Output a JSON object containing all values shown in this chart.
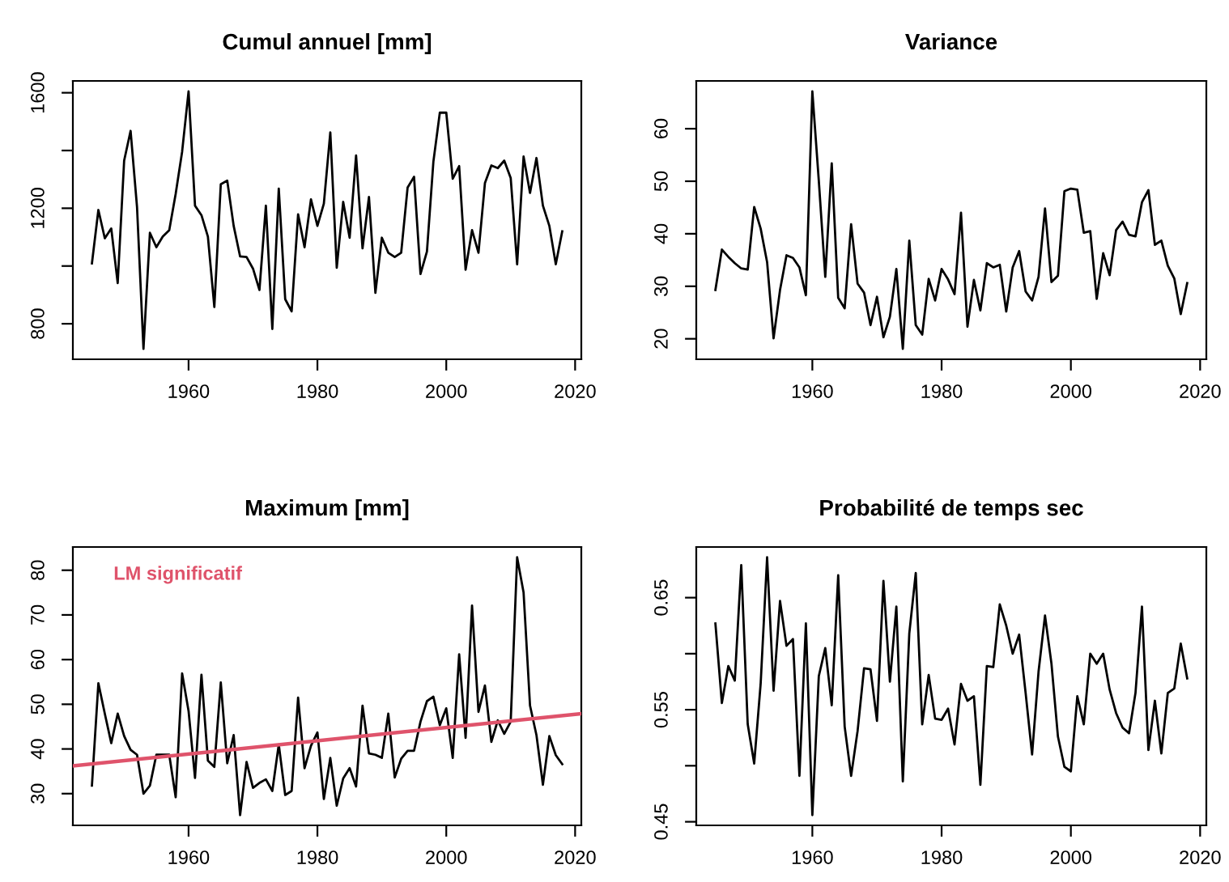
{
  "chart_data": [
    {
      "type": "line",
      "title": "Cumul annuel [mm]",
      "x": [
        1945,
        1946,
        1947,
        1948,
        1949,
        1950,
        1951,
        1952,
        1953,
        1954,
        1955,
        1956,
        1957,
        1958,
        1959,
        1960,
        1961,
        1962,
        1963,
        1964,
        1965,
        1966,
        1967,
        1968,
        1969,
        1970,
        1971,
        1972,
        1973,
        1974,
        1975,
        1976,
        1977,
        1978,
        1979,
        1980,
        1981,
        1982,
        1983,
        1984,
        1985,
        1986,
        1987,
        1988,
        1989,
        1990,
        1991,
        1992,
        1993,
        1994,
        1995,
        1996,
        1997,
        1998,
        1999,
        2000,
        2001,
        2002,
        2003,
        2004,
        2005,
        2006,
        2007,
        2008,
        2009,
        2010,
        2011,
        2012,
        2013,
        2014,
        2015,
        2016,
        2017,
        2018
      ],
      "series": [
        {
          "color": "#000000",
          "values": [
            1009,
            1194,
            1096,
            1130,
            941,
            1365,
            1468,
            1204,
            713,
            1115,
            1065,
            1102,
            1124,
            1250,
            1396,
            1605,
            1209,
            1176,
            1102,
            858,
            1283,
            1296,
            1139,
            1033,
            1031,
            991,
            917,
            1209,
            782,
            1268,
            885,
            843,
            1179,
            1065,
            1231,
            1139,
            1216,
            1463,
            994,
            1222,
            1098,
            1383,
            1061,
            1239,
            907,
            1098,
            1046,
            1031,
            1046,
            1272,
            1309,
            972,
            1050,
            1361,
            1531,
            1531,
            1302,
            1346,
            987,
            1124,
            1046,
            1287,
            1348,
            1339,
            1365,
            1305,
            1006,
            1379,
            1253,
            1374,
            1209,
            1139,
            1006,
            1120
          ]
        }
      ],
      "xlim": [
        1942.04,
        2020.96
      ],
      "xticks": [
        1960,
        1980,
        2000,
        2020
      ],
      "ylim": [
        677,
        1641
      ],
      "yticks": [
        800,
        {
          "value": 1000,
          "label": null
        },
        1200,
        {
          "value": 1400,
          "label": null
        },
        1600
      ]
    },
    {
      "type": "line",
      "title": "Variance",
      "x": [
        1945,
        1946,
        1947,
        1948,
        1949,
        1950,
        1951,
        1952,
        1953,
        1954,
        1955,
        1956,
        1957,
        1958,
        1959,
        1960,
        1961,
        1962,
        1963,
        1964,
        1965,
        1966,
        1967,
        1968,
        1969,
        1970,
        1971,
        1972,
        1973,
        1974,
        1975,
        1976,
        1977,
        1978,
        1979,
        1980,
        1981,
        1982,
        1983,
        1984,
        1985,
        1986,
        1987,
        1988,
        1989,
        1990,
        1991,
        1992,
        1993,
        1994,
        1995,
        1996,
        1997,
        1998,
        1999,
        2000,
        2001,
        2002,
        2003,
        2004,
        2005,
        2006,
        2007,
        2008,
        2009,
        2010,
        2011,
        2012,
        2013,
        2014,
        2015,
        2016,
        2017,
        2018
      ],
      "series": [
        {
          "color": "#000000",
          "values": [
            29.3,
            37.0,
            35.6,
            34.4,
            33.4,
            33.2,
            45.1,
            41.0,
            34.6,
            20.1,
            29.3,
            35.9,
            35.4,
            33.6,
            28.3,
            67.1,
            50.1,
            31.8,
            53.4,
            27.8,
            25.8,
            41.8,
            30.5,
            28.8,
            22.6,
            28.0,
            20.3,
            24.2,
            33.3,
            18.1,
            38.7,
            22.6,
            20.8,
            31.4,
            27.3,
            33.3,
            31.3,
            28.5,
            44.0,
            22.3,
            31.2,
            25.4,
            34.4,
            33.6,
            34.1,
            25.2,
            33.6,
            36.7,
            29.0,
            27.3,
            31.8,
            44.8,
            30.8,
            32.0,
            48.1,
            48.6,
            48.4,
            40.2,
            40.5,
            27.6,
            36.3,
            32.1,
            40.7,
            42.3,
            39.8,
            39.5,
            46.0,
            48.3,
            37.9,
            38.7,
            33.9,
            31.5,
            24.7,
            30.6
          ]
        }
      ],
      "xlim": [
        1942.04,
        2020.96
      ],
      "xticks": [
        1960,
        1980,
        2000,
        2020
      ],
      "ylim": [
        16.1,
        69.1
      ],
      "yticks": [
        20,
        30,
        40,
        50,
        60
      ]
    },
    {
      "type": "line",
      "title": "Maximum [mm]",
      "annotations": [
        "LM significatif"
      ],
      "x": [
        1945,
        1946,
        1947,
        1948,
        1949,
        1950,
        1951,
        1952,
        1953,
        1954,
        1955,
        1956,
        1957,
        1958,
        1959,
        1960,
        1961,
        1962,
        1963,
        1964,
        1965,
        1966,
        1967,
        1968,
        1969,
        1970,
        1971,
        1972,
        1973,
        1974,
        1975,
        1976,
        1977,
        1978,
        1979,
        1980,
        1981,
        1982,
        1983,
        1984,
        1985,
        1986,
        1987,
        1988,
        1989,
        1990,
        1991,
        1992,
        1993,
        1994,
        1995,
        1996,
        1997,
        1998,
        1999,
        2000,
        2001,
        2002,
        2003,
        2004,
        2005,
        2006,
        2007,
        2008,
        2009,
        2010,
        2011,
        2012,
        2013,
        2014,
        2015,
        2016,
        2017,
        2018
      ],
      "series": [
        {
          "color": "#000000",
          "values": [
            31.8,
            54.7,
            47.9,
            41.3,
            47.9,
            42.9,
            39.8,
            38.7,
            30.0,
            31.8,
            38.7,
            38.7,
            38.7,
            29.2,
            56.9,
            48.5,
            33.5,
            56.6,
            37.4,
            36.0,
            54.9,
            36.8,
            43.1,
            25.2,
            37.1,
            31.3,
            32.4,
            33.2,
            30.6,
            41.0,
            29.7,
            30.6,
            51.5,
            35.7,
            40.7,
            43.7,
            28.8,
            38.0,
            27.3,
            33.4,
            35.7,
            31.6,
            49.7,
            39.0,
            38.7,
            38.0,
            47.9,
            33.6,
            37.8,
            39.6,
            39.6,
            46.1,
            50.7,
            51.7,
            45.3,
            49.1,
            38.0,
            61.2,
            42.5,
            72.1,
            48.3,
            54.2,
            41.6,
            46.4,
            43.4,
            46.1,
            82.9,
            75.0,
            49.7,
            43.1,
            32.0,
            42.9,
            38.6,
            36.6
          ]
        },
        {
          "type": "line",
          "color": "#df536b",
          "x": [
            1942.04,
            2020.96
          ],
          "values": [
            36.2,
            47.9
          ]
        }
      ],
      "xlim": [
        1942.04,
        2020.96
      ],
      "xticks": [
        1960,
        1980,
        2000,
        2020
      ],
      "ylim": [
        22.9,
        85.2
      ],
      "yticks": [
        30,
        40,
        50,
        60,
        70,
        80
      ]
    },
    {
      "type": "line",
      "title": "Probabilité de temps sec",
      "x": [
        1945,
        1946,
        1947,
        1948,
        1949,
        1950,
        1951,
        1952,
        1953,
        1954,
        1955,
        1956,
        1957,
        1958,
        1959,
        1960,
        1961,
        1962,
        1963,
        1964,
        1965,
        1966,
        1967,
        1968,
        1969,
        1970,
        1971,
        1972,
        1973,
        1974,
        1975,
        1976,
        1977,
        1978,
        1979,
        1980,
        1981,
        1982,
        1983,
        1984,
        1985,
        1986,
        1987,
        1988,
        1989,
        1990,
        1991,
        1992,
        1993,
        1994,
        1995,
        1996,
        1997,
        1998,
        1999,
        2000,
        2001,
        2002,
        2003,
        2004,
        2005,
        2006,
        2007,
        2008,
        2009,
        2010,
        2011,
        2012,
        2013,
        2014,
        2015,
        2016,
        2017,
        2018
      ],
      "series": [
        {
          "color": "#000000",
          "values": [
            0.627,
            0.556,
            0.589,
            0.576,
            0.679,
            0.537,
            0.502,
            0.573,
            0.686,
            0.567,
            0.647,
            0.607,
            0.613,
            0.491,
            0.627,
            0.456,
            0.58,
            0.605,
            0.554,
            0.67,
            0.535,
            0.491,
            0.531,
            0.587,
            0.586,
            0.54,
            0.665,
            0.575,
            0.642,
            0.486,
            0.618,
            0.672,
            0.537,
            0.581,
            0.542,
            0.541,
            0.551,
            0.519,
            0.573,
            0.558,
            0.562,
            0.483,
            0.589,
            0.588,
            0.644,
            0.625,
            0.6,
            0.617,
            0.565,
            0.51,
            0.584,
            0.634,
            0.591,
            0.526,
            0.499,
            0.495,
            0.562,
            0.537,
            0.6,
            0.591,
            0.6,
            0.568,
            0.547,
            0.534,
            0.529,
            0.565,
            0.642,
            0.514,
            0.558,
            0.511,
            0.565,
            0.569,
            0.609,
            0.578
          ]
        }
      ],
      "xlim": [
        1942.04,
        2020.96
      ],
      "xticks": [
        1960,
        1980,
        2000,
        2020
      ],
      "ylim": [
        0.4468,
        0.6952
      ],
      "yticks": [
        0.45,
        {
          "value": 0.5,
          "label": null
        },
        0.55,
        {
          "value": 0.6,
          "label": null
        },
        0.65
      ]
    }
  ]
}
